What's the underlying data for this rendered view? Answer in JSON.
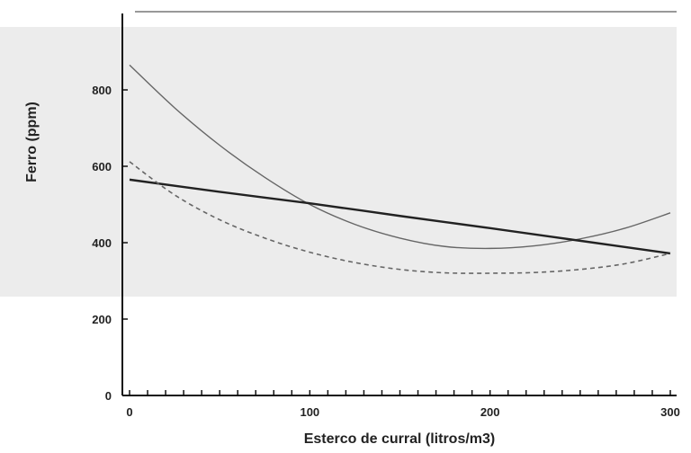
{
  "chart_data": {
    "type": "line",
    "title": "",
    "xlabel": "Esterco de curral (litros/m3)",
    "ylabel": "Ferro (ppm)",
    "xlim": [
      0,
      300
    ],
    "ylim": [
      0,
      1000
    ],
    "x_ticks": [
      "0",
      "100",
      "200",
      "300"
    ],
    "y_ticks": [
      "0",
      "200",
      "400",
      "600",
      "800"
    ],
    "x_tick_values": [
      0,
      100,
      200,
      300
    ],
    "y_tick_values": [
      0,
      200,
      400,
      600,
      800
    ],
    "grid": false,
    "legend": "none",
    "series": [
      {
        "style": "solid-thin",
        "color": "#666666",
        "x": [
          0,
          25,
          50,
          75,
          100,
          125,
          150,
          175,
          200,
          225,
          250,
          275,
          300
        ],
        "y": [
          865,
          753,
          655,
          571,
          500,
          448,
          412,
          390,
          385,
          392,
          410,
          438,
          478
        ]
      },
      {
        "style": "solid-thick",
        "color": "#222222",
        "x": [
          0,
          50,
          100,
          150,
          200,
          250,
          300
        ],
        "y": [
          565,
          533,
          503,
          470,
          438,
          405,
          372
        ]
      },
      {
        "style": "dashed",
        "color": "#666666",
        "x": [
          0,
          25,
          50,
          75,
          100,
          125,
          150,
          175,
          200,
          225,
          250,
          275,
          300
        ],
        "y": [
          612,
          525,
          460,
          412,
          375,
          348,
          330,
          321,
          320,
          322,
          330,
          345,
          372
        ]
      }
    ]
  }
}
